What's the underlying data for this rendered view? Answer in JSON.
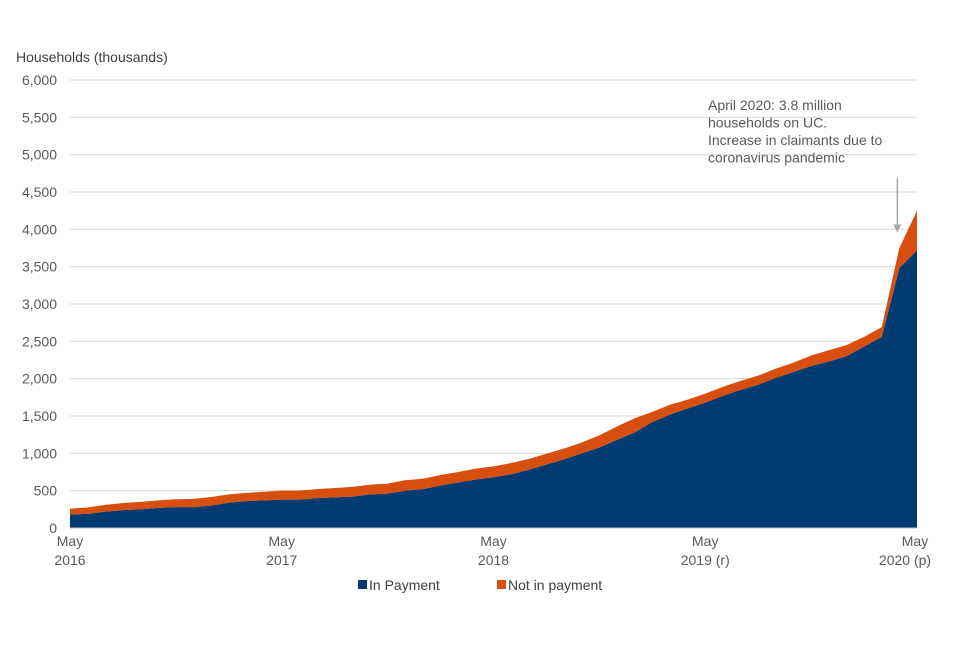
{
  "chart_data": {
    "type": "area",
    "stacked": true,
    "ylabel": "Households (thousands)",
    "ylim": [
      0,
      6000
    ],
    "yticks": [
      "0",
      "500",
      "1,000",
      "1,500",
      "2,000",
      "2,500",
      "3,000",
      "3,500",
      "4,000",
      "4,500",
      "5,000",
      "5,500",
      "6,000"
    ],
    "yticks_values": [
      0,
      500,
      1000,
      1500,
      2000,
      2500,
      3000,
      3500,
      4000,
      4500,
      5000,
      5500,
      6000
    ],
    "x_labels": [
      {
        "line1": "May",
        "line2": "2016",
        "index": 0
      },
      {
        "line1": "May",
        "line2": "2017",
        "index": 12
      },
      {
        "line1": "May",
        "line2": "2018",
        "index": 24
      },
      {
        "line1": "May",
        "line2": "2019 (r)",
        "index": 36
      },
      {
        "line1": "May",
        "line2": "2020 (p)",
        "index": 48
      }
    ],
    "grid": true,
    "legend_position": "bottom",
    "series": [
      {
        "name": "In Payment",
        "color": "#003b71",
        "values": [
          180,
          190,
          220,
          240,
          250,
          270,
          280,
          280,
          300,
          340,
          360,
          370,
          380,
          380,
          400,
          410,
          420,
          450,
          460,
          500,
          520,
          570,
          610,
          650,
          680,
          720,
          780,
          850,
          920,
          1000,
          1080,
          1180,
          1280,
          1420,
          1520,
          1600,
          1680,
          1770,
          1850,
          1920,
          2010,
          2090,
          2170,
          2230,
          2300,
          2430,
          2560,
          3480,
          3720
        ]
      },
      {
        "name": "Not in payment",
        "color": "#d84e0f",
        "values": [
          80,
          85,
          90,
          95,
          100,
          100,
          105,
          110,
          115,
          110,
          110,
          115,
          120,
          120,
          120,
          125,
          130,
          130,
          135,
          140,
          140,
          140,
          140,
          145,
          145,
          150,
          145,
          145,
          145,
          145,
          160,
          180,
          190,
          135,
          130,
          120,
          120,
          120,
          120,
          120,
          125,
          125,
          140,
          150,
          150,
          130,
          130,
          270,
          530
        ]
      }
    ],
    "annotation": {
      "lines": [
        "April 2020: 3.8 million",
        "households on UC.",
        "Increase in claimants due to",
        "coronavirus pandemic"
      ],
      "arrow_target_index": 47,
      "arrow_target_value": 3850
    }
  }
}
